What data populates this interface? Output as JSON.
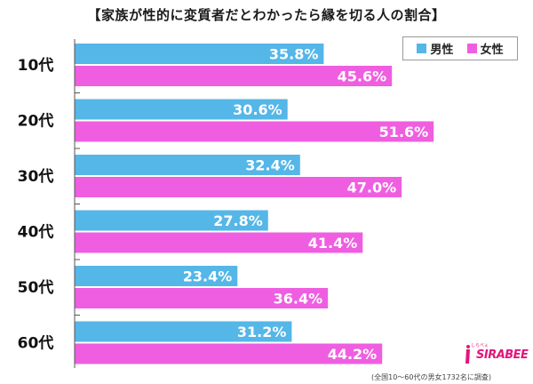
{
  "title": "【家族が性的に変質者だとわかったら縁を切る人の割合】",
  "legend": {
    "male_label": "男性",
    "female_label": "女性"
  },
  "colors": {
    "male": "#55b6e8",
    "female": "#ef5ee0",
    "axis": "#555555",
    "grid": "#cccccc"
  },
  "footnote": "(全国10～60代の男女1732名に調査)",
  "logo": {
    "text": "SIRABEE",
    "subtext": "しらべぇ"
  },
  "chart_data": {
    "type": "bar",
    "orientation": "horizontal",
    "title": "【家族が性的に変質者だとわかったら縁を切る人の割合】",
    "categories": [
      "10代",
      "20代",
      "30代",
      "40代",
      "50代",
      "60代"
    ],
    "series": [
      {
        "name": "男性",
        "values": [
          35.8,
          30.6,
          32.4,
          27.8,
          23.4,
          31.2
        ],
        "labels": [
          "35.8%",
          "30.6%",
          "32.4%",
          "27.8%",
          "23.4%",
          "31.2%"
        ]
      },
      {
        "name": "女性",
        "values": [
          45.6,
          51.6,
          47.0,
          41.4,
          36.4,
          44.2
        ],
        "labels": [
          "45.6%",
          "51.6%",
          "47.0%",
          "41.4%",
          "36.4%",
          "44.2%"
        ]
      }
    ],
    "xlim": [
      0,
      60
    ],
    "legend_position": "top-right"
  }
}
